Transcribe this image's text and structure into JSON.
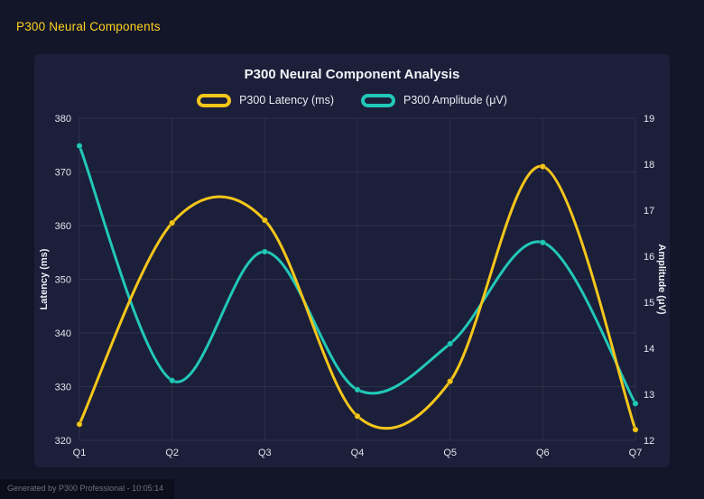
{
  "page": {
    "header": "P300 Neural Components",
    "footer": "Generated by P300 Professional - 10:05:14"
  },
  "ui_colors": {
    "background": "#131629",
    "panel": "#1b1f3a",
    "header_text": "#ffd21e",
    "grid": "rgba(255,255,255,0.08)",
    "tick_text": "#e3e5ee",
    "axis_title_text": "#eceef4"
  },
  "chart_data": {
    "type": "line",
    "title": "P300 Neural Component Analysis",
    "categories": [
      "Q1",
      "Q2",
      "Q3",
      "Q4",
      "Q5",
      "Q6",
      "Q7"
    ],
    "series": [
      {
        "name": "P300 Latency (ms)",
        "axis": "left",
        "color": "#f5c61b",
        "values": [
          323,
          360.5,
          361,
          324.5,
          331,
          371,
          322
        ]
      },
      {
        "name": "P300 Amplitude (μV)",
        "axis": "right",
        "color": "#22c8b7",
        "values": [
          18.4,
          13.3,
          16.1,
          13.1,
          14.1,
          16.3,
          12.8
        ]
      }
    ],
    "left_axis": {
      "label": "Latency (ms)",
      "min": 320,
      "max": 380,
      "step": 10
    },
    "right_axis": {
      "label": "Amplitude (μV)",
      "min": 12,
      "max": 19,
      "step": 1
    },
    "grid": true,
    "legend_position": "top",
    "curve": "smooth"
  }
}
